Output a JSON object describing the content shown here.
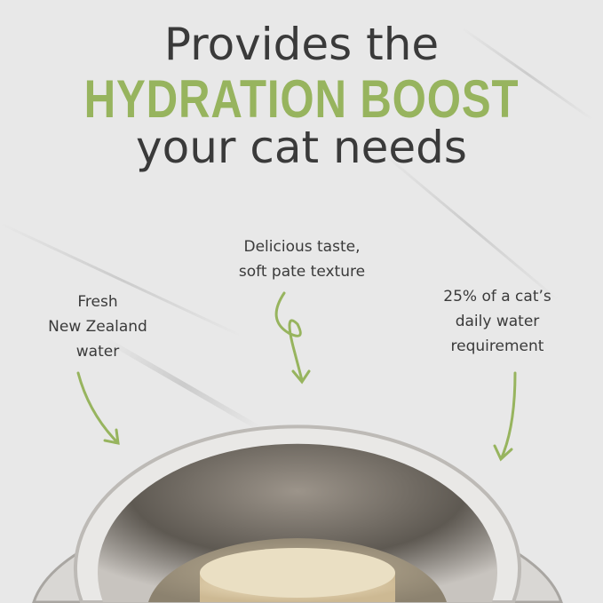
{
  "headline": {
    "line1": "Provides the",
    "line2": "HYDRATION BOOST",
    "line3": "your cat needs"
  },
  "callouts": [
    {
      "text_line1": "Fresh",
      "text_line2": "New Zealand",
      "text_line3": "water"
    },
    {
      "text_line1": "Delicious taste,",
      "text_line2": "soft pate texture"
    },
    {
      "text_line1": "25% of a cat’s",
      "text_line2": "daily water",
      "text_line3": "requirement"
    }
  ],
  "colors": {
    "accent": "#97b45e",
    "text": "#3a3a3a"
  }
}
